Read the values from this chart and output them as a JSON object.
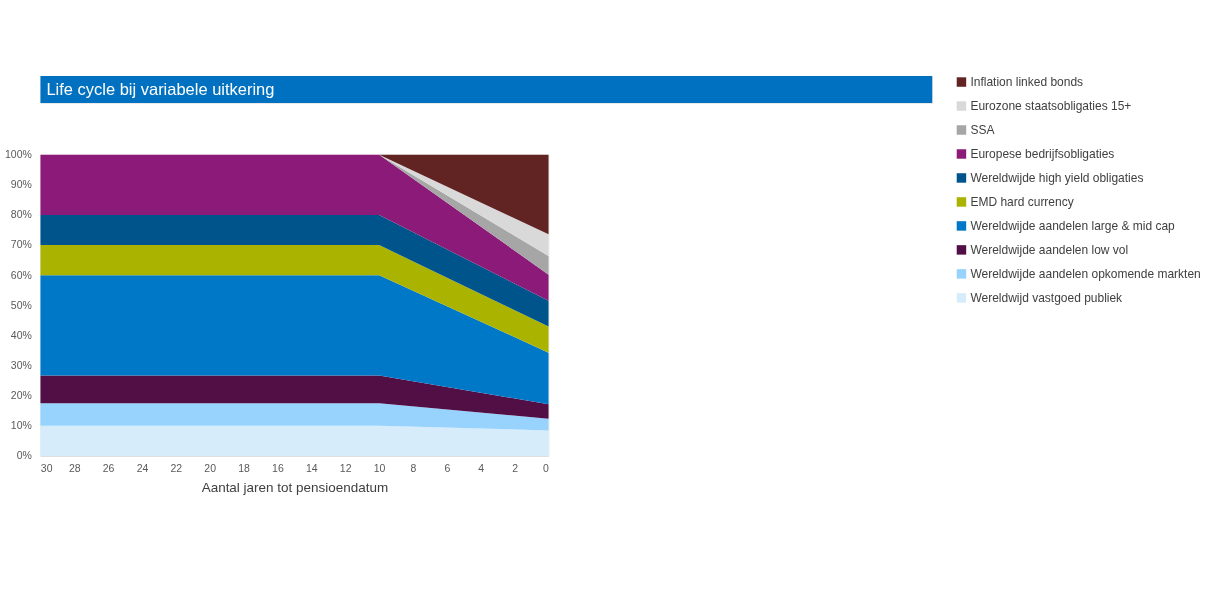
{
  "chart_data": {
    "type": "area",
    "stacked": true,
    "title": "Life cycle bij variabele uitkering",
    "xlabel": "Aantal jaren tot pensioendatum",
    "x": [
      30,
      10,
      0
    ],
    "xlim": [
      30,
      0
    ],
    "xticks": [
      30,
      28,
      26,
      24,
      22,
      20,
      18,
      16,
      14,
      12,
      10,
      8,
      6,
      4,
      2,
      0
    ],
    "ylim": [
      0,
      100
    ],
    "yticks": [
      {
        "value": 0,
        "label": "0%"
      },
      {
        "value": 10,
        "label": "10%"
      },
      {
        "value": 20,
        "label": "20%"
      },
      {
        "value": 30,
        "label": "30%"
      },
      {
        "value": 40,
        "label": "40%"
      },
      {
        "value": 50,
        "label": "50%"
      },
      {
        "value": 60,
        "label": "60%"
      },
      {
        "value": 70,
        "label": "70%"
      },
      {
        "value": 80,
        "label": "80%"
      },
      {
        "value": 90,
        "label": "90%"
      },
      {
        "value": 100,
        "label": "100%"
      }
    ],
    "grid": false,
    "legend": "right",
    "series": [
      {
        "name": "Wereldwijd vastgoed publiek",
        "color": "#d6ecfb",
        "values": [
          10,
          10,
          8.5
        ]
      },
      {
        "name": "Wereldwijde aandelen opkomende markten",
        "color": "#97d3fd",
        "values": [
          7.5,
          7.5,
          3.9
        ]
      },
      {
        "name": "Wereldwijde aandelen low vol",
        "color": "#520f46",
        "values": [
          9.2,
          9.2,
          4.8
        ]
      },
      {
        "name": "Wereldwijde aandelen large & mid cap",
        "color": "#0078c8",
        "values": [
          33.3,
          33.3,
          17.1
        ]
      },
      {
        "name": "EMD hard currency",
        "color": "#aab400",
        "values": [
          10,
          10,
          8.7
        ]
      },
      {
        "name": "Wereldwijde high yield obligaties",
        "color": "#00548c",
        "values": [
          10,
          10,
          8.5
        ]
      },
      {
        "name": "Europese bedrijfsobligaties",
        "color": "#8c1a78",
        "values": [
          20,
          20,
          8.7
        ]
      },
      {
        "name": "SSA",
        "color": "#a6a6a6",
        "values": [
          0,
          0,
          6.2
        ]
      },
      {
        "name": "Eurozone staatsobligaties 15+",
        "color": "#d9d9d9",
        "values": [
          0,
          0,
          7.2
        ]
      },
      {
        "name": "Inflation linked bonds",
        "color": "#622323",
        "values": [
          0,
          0,
          26.4
        ]
      }
    ]
  }
}
